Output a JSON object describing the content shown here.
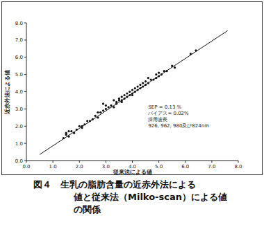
{
  "chart_data": {
    "type": "scatter",
    "title": [
      "図４　生乳の脂肪含量の近赤外法による",
      "値と従来法（Milko-scan）による値",
      "の関係"
    ],
    "x_label": "従来法による値",
    "y_label": "近赤外法による値",
    "annotations": [
      "SEP = 0.13 %",
      "バイアス= 0.02%",
      "採用波長",
      "926, 962, 980及び824nm"
    ],
    "xlim": [
      0,
      8
    ],
    "ylim": [
      0,
      8
    ],
    "xticks": [
      {
        "value": 0,
        "label": "0.0"
      },
      {
        "value": 1,
        "label": "1.0"
      },
      {
        "value": 2,
        "label": "2.0"
      },
      {
        "value": 3,
        "label": "3.0"
      },
      {
        "value": 4,
        "label": "4.0"
      },
      {
        "value": 5,
        "label": "5.0"
      },
      {
        "value": 6,
        "label": "6.0"
      },
      {
        "value": 7,
        "label": "7.0"
      },
      {
        "value": 8,
        "label": "8.0"
      }
    ],
    "yticks": [
      {
        "value": 0,
        "label": "0.0"
      },
      {
        "value": 1,
        "label": "1.0"
      },
      {
        "value": 2,
        "label": "2.0"
      },
      {
        "value": 3,
        "label": "3.0"
      },
      {
        "value": 4,
        "label": "4.0"
      },
      {
        "value": 5,
        "label": "5.0"
      },
      {
        "value": 6,
        "label": "6.0"
      },
      {
        "value": 7,
        "label": "7.0"
      },
      {
        "value": 8,
        "label": "8.0"
      }
    ],
    "grid": false,
    "series": [
      {
        "type": "scatter",
        "marker": "circle",
        "color": "#111111",
        "x": [
          1.4,
          1.5,
          1.5,
          1.6,
          1.7,
          1.8,
          1.9,
          2.0,
          2.1,
          2.2,
          2.3,
          2.4,
          2.5,
          2.6,
          2.7,
          2.7,
          2.8,
          2.9,
          2.9,
          3.0,
          3.0,
          3.1,
          3.2,
          3.3,
          3.4,
          3.4,
          3.5,
          3.5,
          3.6,
          3.6,
          3.7,
          3.7,
          3.8,
          3.8,
          3.9,
          3.9,
          4.0,
          4.0,
          4.0,
          4.1,
          4.1,
          4.2,
          4.2,
          4.3,
          4.3,
          4.4,
          4.4,
          4.5,
          4.5,
          4.6,
          4.7,
          4.8,
          4.9,
          4.9,
          5.0,
          5.0,
          5.1,
          5.2,
          5.3,
          5.5,
          5.6,
          6.2,
          6.4,
          3.6,
          2.1,
          1.6,
          4.6,
          3.3
        ],
        "values": [
          1.3,
          1.6,
          1.5,
          1.4,
          1.7,
          1.6,
          1.8,
          2.0,
          2.0,
          2.1,
          2.3,
          2.3,
          2.4,
          2.6,
          2.5,
          2.8,
          2.8,
          2.9,
          3.3,
          3.0,
          3.2,
          3.1,
          3.2,
          3.1,
          3.4,
          3.3,
          3.5,
          3.6,
          3.5,
          3.7,
          3.6,
          3.8,
          3.7,
          3.9,
          3.8,
          4.0,
          3.9,
          4.1,
          3.8,
          4.0,
          4.2,
          4.1,
          4.3,
          4.2,
          4.4,
          4.3,
          4.5,
          4.4,
          4.6,
          4.5,
          4.7,
          4.7,
          4.8,
          5.0,
          4.9,
          5.1,
          5.0,
          5.2,
          5.2,
          5.5,
          5.4,
          6.2,
          6.4,
          3.4,
          1.9,
          1.7,
          4.8,
          3.5
        ]
      },
      {
        "type": "line",
        "line_style": "solid",
        "color": "#111111",
        "x": [
          0.5,
          7.6
        ],
        "values": [
          0.35,
          7.55
        ]
      }
    ]
  }
}
